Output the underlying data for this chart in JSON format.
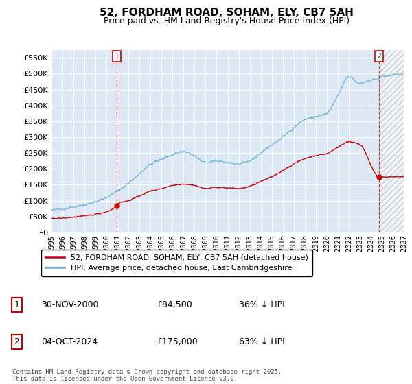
{
  "title": "52, FORDHAM ROAD, SOHAM, ELY, CB7 5AH",
  "subtitle": "Price paid vs. HM Land Registry's House Price Index (HPI)",
  "bg_color": "#ffffff",
  "plot_bg_color": "#dce8f5",
  "grid_color": "#ffffff",
  "hpi_color": "#6baed6",
  "price_color": "#cc0000",
  "marker1_date_x": 2000.92,
  "marker2_date_x": 2024.75,
  "marker1_y": 84500,
  "marker2_y": 175000,
  "xmin": 1995,
  "xmax": 2027,
  "ymin": 0,
  "ymax": 575000,
  "yticks": [
    0,
    50000,
    100000,
    150000,
    200000,
    250000,
    300000,
    350000,
    400000,
    450000,
    500000,
    550000
  ],
  "legend_label_price": "52, FORDHAM ROAD, SOHAM, ELY, CB7 5AH (detached house)",
  "legend_label_hpi": "HPI: Average price, detached house, East Cambridgeshire",
  "annotation1_label": "1",
  "annotation2_label": "2",
  "annotation1_date": "30-NOV-2000",
  "annotation1_price": "£84,500",
  "annotation1_hpi": "36% ↓ HPI",
  "annotation2_date": "04-OCT-2024",
  "annotation2_price": "£175,000",
  "annotation2_hpi": "63% ↓ HPI",
  "footnote": "Contains HM Land Registry data © Crown copyright and database right 2025.\nThis data is licensed under the Open Government Licence v3.0.",
  "hatch_start": 2024.75,
  "future_hatch_color": "#cccccc"
}
